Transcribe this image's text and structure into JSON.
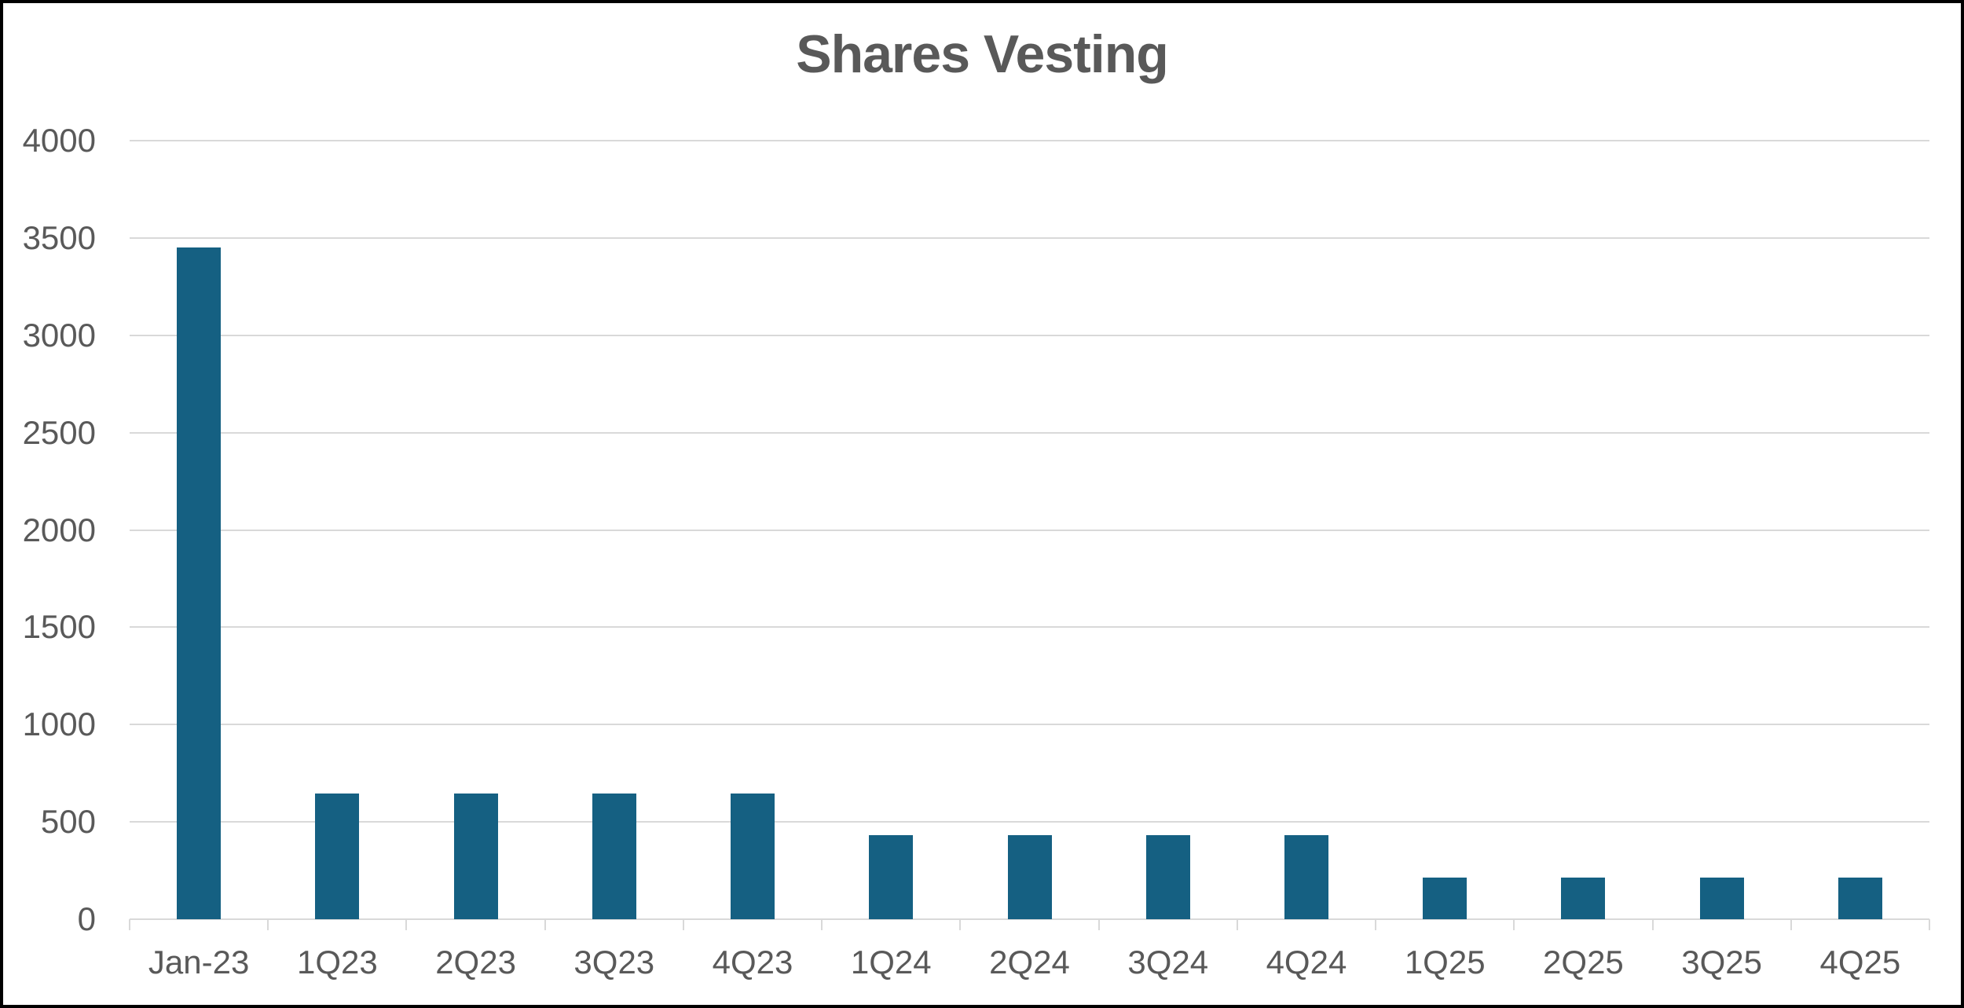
{
  "chart_data": {
    "type": "bar",
    "title": "Shares Vesting",
    "categories": [
      "Jan-23",
      "1Q23",
      "2Q23",
      "3Q23",
      "4Q23",
      "1Q24",
      "2Q24",
      "3Q24",
      "4Q24",
      "1Q25",
      "2Q25",
      "3Q25",
      "4Q25"
    ],
    "values": [
      3450,
      645,
      645,
      645,
      645,
      430,
      430,
      430,
      430,
      215,
      215,
      215,
      215
    ],
    "xlabel": "",
    "ylabel": "",
    "ylim": [
      0,
      4000
    ],
    "yticks": [
      0,
      500,
      1000,
      1500,
      2000,
      2500,
      3000,
      3500,
      4000
    ],
    "grid": true,
    "legend": "none",
    "colors": {
      "bar": "#156082",
      "gridline": "#D9D9D9",
      "axis": "#D9D9D9",
      "labels": "#595959",
      "title": "#595959",
      "background": "#FFFFFF",
      "frame": "#000000"
    }
  }
}
